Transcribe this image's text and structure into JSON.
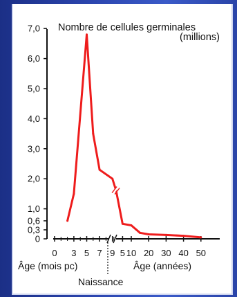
{
  "chart_data": {
    "type": "line",
    "title": "Nombre de cellules germinales",
    "title_unit": "(millions)",
    "y_ticks": [
      "7,0",
      "6,0",
      "5,0",
      "4,0",
      "3,0",
      "2,0",
      "1,0",
      "0,6",
      "0,3",
      "0"
    ],
    "y_tick_values": [
      7.0,
      6.0,
      5.0,
      4.0,
      3.0,
      2.0,
      1.0,
      0.6,
      0.3,
      0
    ],
    "ylim": [
      0,
      7
    ],
    "x_ticks_prenatal": [
      "0",
      "3",
      "5",
      "7",
      "9"
    ],
    "x_ticks_prenatal_values": [
      0,
      3,
      5,
      7,
      9
    ],
    "x_unit_prenatal": "mois pc",
    "x_ticks_postnatal": [
      "5",
      "10",
      "20",
      "30",
      "40",
      "50"
    ],
    "x_ticks_postnatal_values": [
      5,
      10,
      20,
      30,
      40,
      50
    ],
    "x_unit_postnatal": "années",
    "xlabel_prenatal": "Âge (mois pc)",
    "xlabel_postnatal": "Âge (années)",
    "birth_label": "Naissance",
    "series": [
      {
        "prenatal": [
          [
            2,
            0.6
          ],
          [
            3,
            1.5
          ],
          [
            5,
            6.8
          ],
          [
            6,
            3.5
          ],
          [
            7,
            2.3
          ],
          [
            9,
            2.0
          ]
        ],
        "postnatal": [
          [
            1.3,
            1.6
          ],
          [
            5,
            0.5
          ],
          [
            10,
            0.45
          ],
          [
            15,
            0.2
          ],
          [
            20,
            0.15
          ],
          [
            30,
            0.13
          ],
          [
            40,
            0.1
          ],
          [
            50,
            0.05
          ]
        ]
      }
    ],
    "colors": {
      "line": "#ee1c1c",
      "axis": "#111111"
    },
    "grid": false
  }
}
